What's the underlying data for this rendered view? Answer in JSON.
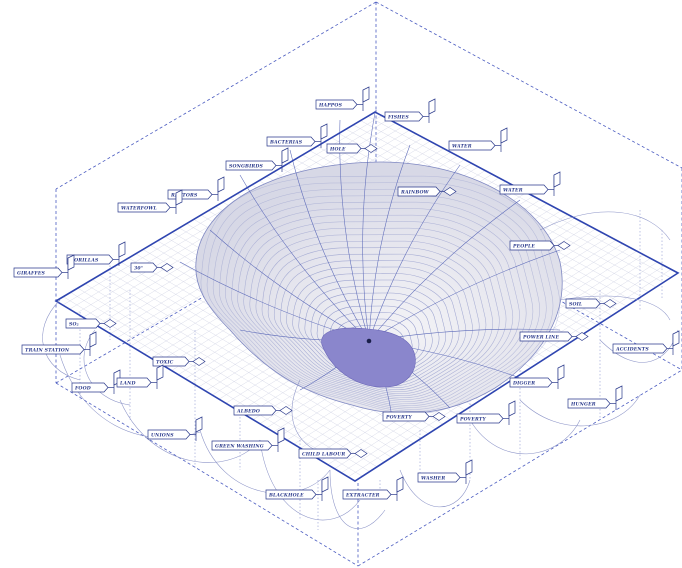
{
  "diagram": {
    "labels": [
      {
        "id": "happos",
        "text": "HAPPOS",
        "style": "tag-flag"
      },
      {
        "id": "fishes",
        "text": "FISHES",
        "style": "tag-flag"
      },
      {
        "id": "bacterias",
        "text": "BACTERIAS",
        "style": "tag-flag"
      },
      {
        "id": "hole",
        "text": "HOLE",
        "style": "tag-diamond"
      },
      {
        "id": "water-top",
        "text": "WATER",
        "style": "tag-flag"
      },
      {
        "id": "songbirds",
        "text": "SONGBIRDS",
        "style": "tag-flag"
      },
      {
        "id": "rainbow",
        "text": "RAINBOW",
        "style": "tag-diamond"
      },
      {
        "id": "water-right",
        "text": "WATER",
        "style": "tag-flag"
      },
      {
        "id": "raptors",
        "text": "RAPTORS",
        "style": "tag-flag"
      },
      {
        "id": "waterfowl",
        "text": "WATERFOWL",
        "style": "tag-flag"
      },
      {
        "id": "people",
        "text": "PEOPLE",
        "style": "tag-diamond"
      },
      {
        "id": "gorillas",
        "text": "GORILLAS",
        "style": "tag-flag"
      },
      {
        "id": "giraffes",
        "text": "GIRAFFES",
        "style": "tag-flag"
      },
      {
        "id": "deg",
        "text": "30°",
        "style": "tag-diamond"
      },
      {
        "id": "soil",
        "text": "SOIL",
        "style": "tag-diamond"
      },
      {
        "id": "so2",
        "text": "SO₂",
        "style": "tag-diamond"
      },
      {
        "id": "power-line",
        "text": "POWER LINE",
        "style": "tag-diamond"
      },
      {
        "id": "train-station",
        "text": "TRAIN STATION",
        "style": "tag-flag"
      },
      {
        "id": "toxic",
        "text": "TOXIC",
        "style": "tag-diamond"
      },
      {
        "id": "accidents",
        "text": "ACCIDENTS",
        "style": "tag-flag"
      },
      {
        "id": "food",
        "text": "FOOD",
        "style": "tag-flag"
      },
      {
        "id": "land",
        "text": "LAND",
        "style": "tag-flag"
      },
      {
        "id": "digger",
        "text": "DIGGER",
        "style": "tag-flag"
      },
      {
        "id": "hunger",
        "text": "HUNGER",
        "style": "tag-flag"
      },
      {
        "id": "albedo",
        "text": "ALBEDO",
        "style": "tag-diamond"
      },
      {
        "id": "poverty-1",
        "text": "POVERTY",
        "style": "tag-diamond"
      },
      {
        "id": "poverty-2",
        "text": "POVERTY",
        "style": "tag-flag"
      },
      {
        "id": "unions",
        "text": "UNIONS",
        "style": "tag-flag"
      },
      {
        "id": "green-washing",
        "text": "GREEN WASHING",
        "style": "tag-flag"
      },
      {
        "id": "child-labour",
        "text": "CHILD LABOUR",
        "style": "tag-diamond"
      },
      {
        "id": "washer",
        "text": "WASHER",
        "style": "tag-flag"
      },
      {
        "id": "blackhole",
        "text": "BLACKHOLE",
        "style": "tag-flag"
      },
      {
        "id": "extracter",
        "text": "EXTRACTER",
        "style": "tag-flag"
      }
    ]
  }
}
